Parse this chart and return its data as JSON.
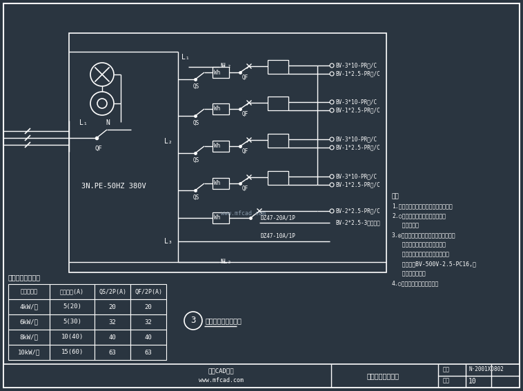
{
  "bg_color": "#2a3540",
  "fg_color": "#ffffff",
  "title": "电表筱系统示意图",
  "diagram_num": "10",
  "drawing_num": "N·2001XD802",
  "table_title": "分户表开关选择表",
  "table_headers": [
    "电负计算表",
    "电表规格(A)",
    "QS/2P(A)",
    "QF/2P(A)"
  ],
  "table_rows": [
    [
      "4kW/户",
      "5(20)",
      "20",
      "20"
    ],
    [
      "6kW/户",
      "5(30)",
      "32",
      "32"
    ],
    [
      "8kW/户",
      "10(40)",
      "40",
      "40"
    ],
    [
      "10kW/户",
      "15(60)",
      "63",
      "63"
    ]
  ],
  "supply_label": "3N.PE-50HZ 380V",
  "notes_title": "注：",
  "diagram_label": "十二户电表筱系统图",
  "diagram_number_label": "3",
  "cable_labels_top": [
    "BV-3*10-PR⼔/C",
    "BV-1*2.5-PR⼔/C"
  ],
  "note_lines": [
    "1.本图适用于开关式居民分户表筱用；",
    "2.○表示断路开关、电表、熟断本",
    "   图不适用；",
    "3.◎表示每户到分户配电箱间的进线，进",
    "   线入大楼地下层配电间、干线",
    "   与次干线间中性线结线，地下层",
    "   管道采用BV-500V-2.5-PC16,干",
    "   线下泡沼无山，",
    "4.○表示居民户配电盘结线。"
  ]
}
